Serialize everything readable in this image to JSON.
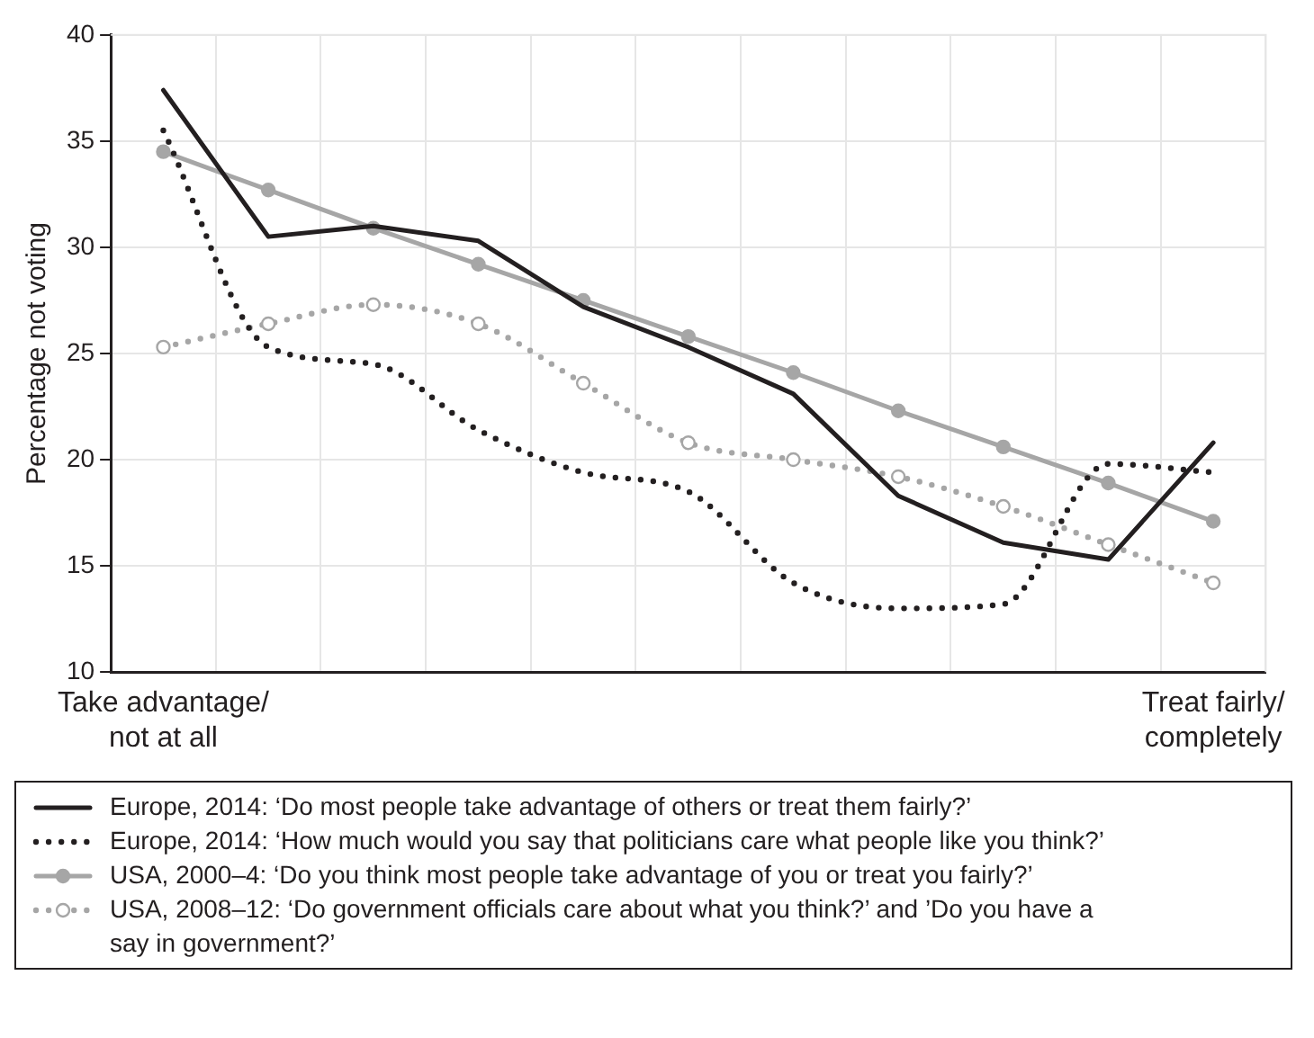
{
  "chart_data": {
    "type": "line",
    "ylabel": "Percentage not voting",
    "categories": [
      "Take advantage/\nnot at all",
      null,
      null,
      null,
      null,
      null,
      null,
      null,
      null,
      null,
      "Treat fairly/\ncompletely"
    ],
    "ylim": [
      10,
      40
    ],
    "yticks": [
      10,
      15,
      20,
      25,
      30,
      35,
      40
    ],
    "grid": true,
    "legend": "bottom",
    "series": [
      {
        "name": "Europe, 2014: ‘Do most people take advantage of others or treat them fairly?’",
        "color": "#231f20",
        "line_style": "solid",
        "marker": "none",
        "values": [
          37.4,
          30.5,
          31.0,
          30.3,
          27.2,
          25.3,
          23.1,
          18.3,
          16.1,
          15.3,
          20.8
        ]
      },
      {
        "name": "Europe, 2014: ‘How much would you say that politicians care what people like you think?’",
        "color": "#231f20",
        "line_style": "dotted",
        "marker": "none",
        "values": [
          35.5,
          25.3,
          24.5,
          21.4,
          19.4,
          18.5,
          14.2,
          13.0,
          13.2,
          19.8,
          19.4
        ]
      },
      {
        "name": "USA, 2000–4: ‘Do you think most people take advantage of you or treat you fairly?’",
        "color": "#a6a6a6",
        "line_style": "solid",
        "marker": "circle",
        "values": [
          34.5,
          32.7,
          30.9,
          29.2,
          27.5,
          25.8,
          24.1,
          22.3,
          20.6,
          18.9,
          17.1
        ]
      },
      {
        "name": "USA, 2008–12: ‘Do government officials care about what you think?’ and ’Do you have a say in government?’",
        "color": "#a6a6a6",
        "line_style": "dotted",
        "marker": "circle",
        "values": [
          25.3,
          26.4,
          27.3,
          26.4,
          23.6,
          20.8,
          20.0,
          19.2,
          17.8,
          16.0,
          14.2
        ]
      }
    ]
  }
}
